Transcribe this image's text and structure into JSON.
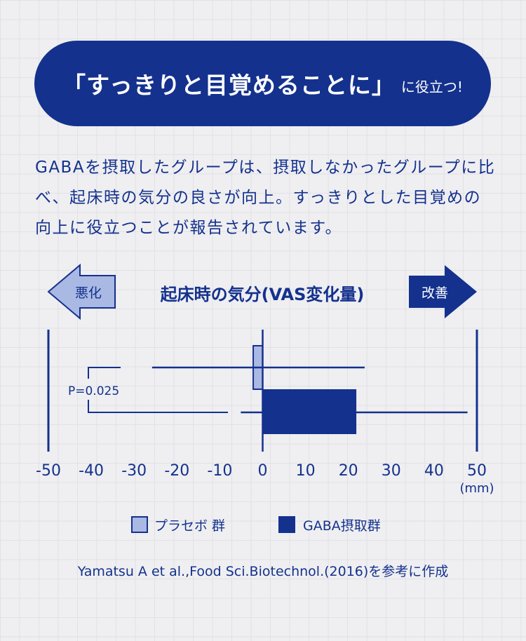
{
  "headline": {
    "main": "「すっきりと目覚めることに」",
    "sub": "に役立つ!"
  },
  "description": "GABAを摂取したグループは、摂取しなかったグループに比べ、起床時の気分の良さが向上。すっきりとした目覚めの向上に役立つことが報告されています。",
  "chart_data": {
    "type": "bar",
    "orientation": "horizontal",
    "title": "起床時の気分(VAS変化量)",
    "left_arrow_label": "悪化",
    "right_arrow_label": "改善",
    "xlim": [
      -50,
      50
    ],
    "xticks": [
      -50,
      -40,
      -30,
      -20,
      -10,
      0,
      10,
      20,
      30,
      40,
      50
    ],
    "xunit": "(mm)",
    "series": [
      {
        "name": "プラセボ 群",
        "value": -2.2,
        "error_low": -25.8,
        "error_high": 23.8,
        "color": "#aab9e3"
      },
      {
        "name": "GABA摂取群",
        "value": 21.7,
        "error_low": -5.1,
        "error_high": 47.8,
        "color": "#14318d"
      }
    ],
    "annotation": "P=0.025",
    "grid": false,
    "legend": "bottom"
  },
  "citation": "Yamatsu A et al.,Food Sci.Biotechnol.(2016)を参考に作成",
  "colors": {
    "navy": "#14318d",
    "light": "#aab9e3",
    "background": "#efeff1"
  }
}
